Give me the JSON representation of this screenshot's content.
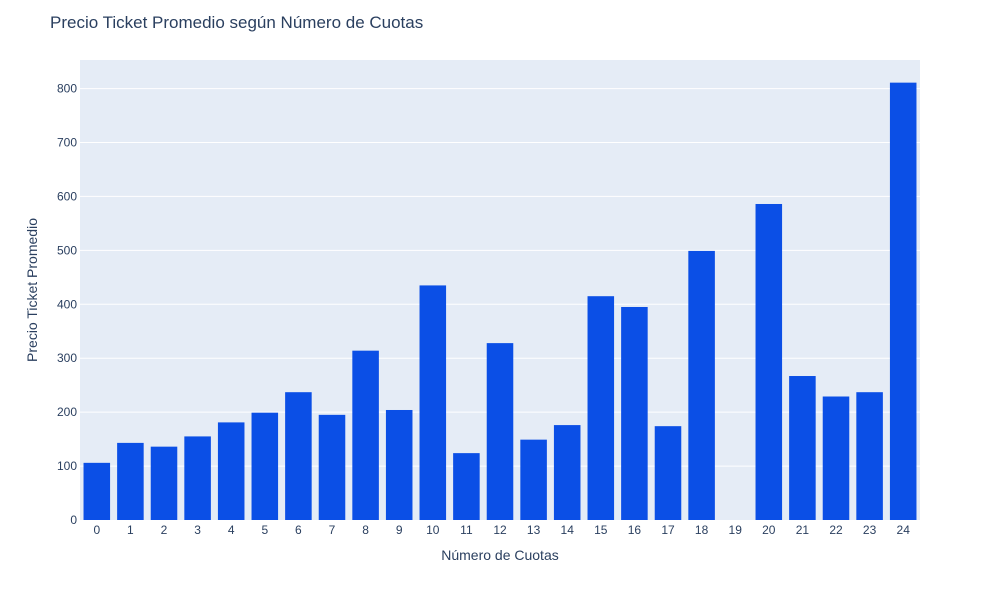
{
  "chart_data": {
    "type": "bar",
    "title": "Precio Ticket Promedio según Número de Cuotas",
    "xlabel": "Número de Cuotas",
    "ylabel": "Precio Ticket Promedio",
    "categories": [
      "0",
      "1",
      "2",
      "3",
      "4",
      "5",
      "6",
      "7",
      "8",
      "9",
      "10",
      "11",
      "12",
      "13",
      "14",
      "15",
      "16",
      "17",
      "18",
      "19",
      "20",
      "21",
      "22",
      "23",
      "24"
    ],
    "values": [
      106,
      143,
      136,
      155,
      181,
      199,
      237,
      195,
      314,
      204,
      435,
      124,
      328,
      149,
      176,
      415,
      395,
      174,
      499,
      null,
      586,
      267,
      229,
      237,
      811
    ],
    "ylim": [
      0,
      853
    ],
    "yticks": [
      0,
      100,
      200,
      300,
      400,
      500,
      600,
      700,
      800
    ],
    "grid": true,
    "colors": {
      "bar": "#0b4fe6",
      "plot_bg": "#e5ecf6",
      "grid": "#ffffff",
      "text": "#2a3f5f"
    }
  }
}
